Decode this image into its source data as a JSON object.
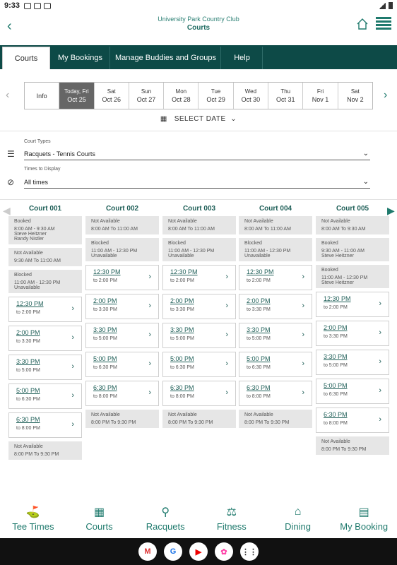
{
  "status": {
    "time": "9:33"
  },
  "header": {
    "club": "University Park Country Club",
    "page": "Courts"
  },
  "tabs": [
    "Courts",
    "My Bookings",
    "Manage Buddies and Groups",
    "Help"
  ],
  "dates": [
    {
      "top": "Info",
      "bottom": ""
    },
    {
      "top": "Today, Fri",
      "bottom": "Oct 25"
    },
    {
      "top": "Sat",
      "bottom": "Oct 26"
    },
    {
      "top": "Sun",
      "bottom": "Oct 27"
    },
    {
      "top": "Mon",
      "bottom": "Oct 28"
    },
    {
      "top": "Tue",
      "bottom": "Oct 29"
    },
    {
      "top": "Wed",
      "bottom": "Oct 30"
    },
    {
      "top": "Thu",
      "bottom": "Oct 31"
    },
    {
      "top": "Fri",
      "bottom": "Nov 1"
    },
    {
      "top": "Sat",
      "bottom": "Nov 2"
    }
  ],
  "select_date": "SELECT DATE",
  "filters": {
    "court_types_label": "Court Types",
    "court_types_value": "Racquets - Tennis Courts",
    "times_label": "Times to Display",
    "times_value": "All times"
  },
  "courts": [
    {
      "name": "Court 001",
      "slots": [
        {
          "type": "gray",
          "title": "Booked",
          "lines": [
            "8:00 AM - 9:30 AM",
            "Steve Heitzner",
            "Randy Nistler"
          ]
        },
        {
          "type": "gray",
          "title": "Not Available",
          "lines": [
            "9:30 AM To 11:00 AM"
          ]
        },
        {
          "type": "gray",
          "title": "Blocked",
          "lines": [
            "11:00 AM - 12:30 PM",
            "Unavailable"
          ]
        },
        {
          "type": "avail",
          "start": "12:30 PM",
          "end": "to 2:00 PM"
        },
        {
          "type": "avail",
          "start": "2:00 PM",
          "end": "to 3:30 PM"
        },
        {
          "type": "avail",
          "start": "3:30 PM",
          "end": "to 5:00 PM"
        },
        {
          "type": "avail",
          "start": "5:00 PM",
          "end": "to 6:30 PM"
        },
        {
          "type": "avail",
          "start": "6:30 PM",
          "end": "to 8:00 PM"
        },
        {
          "type": "gray",
          "title": "Not Available",
          "lines": [
            "8:00 PM To 9:30 PM"
          ]
        }
      ]
    },
    {
      "name": "Court 002",
      "slots": [
        {
          "type": "gray",
          "title": "Not Available",
          "lines": [
            "8:00 AM To 11:00 AM"
          ]
        },
        {
          "type": "gray",
          "title": "Blocked",
          "lines": [
            "11:00 AM - 12:30 PM",
            "Unavailable"
          ]
        },
        {
          "type": "avail",
          "start": "12:30 PM",
          "end": "to 2:00 PM"
        },
        {
          "type": "avail",
          "start": "2:00 PM",
          "end": "to 3:30 PM"
        },
        {
          "type": "avail",
          "start": "3:30 PM",
          "end": "to 5:00 PM"
        },
        {
          "type": "avail",
          "start": "5:00 PM",
          "end": "to 6:30 PM"
        },
        {
          "type": "avail",
          "start": "6:30 PM",
          "end": "to 8:00 PM"
        },
        {
          "type": "gray",
          "title": "Not Available",
          "lines": [
            "8:00 PM To 9:30 PM"
          ]
        }
      ]
    },
    {
      "name": "Court 003",
      "slots": [
        {
          "type": "gray",
          "title": "Not Available",
          "lines": [
            "8:00 AM To 11:00 AM"
          ]
        },
        {
          "type": "gray",
          "title": "Blocked",
          "lines": [
            "11:00 AM - 12:30 PM",
            "Unavailable"
          ]
        },
        {
          "type": "avail",
          "start": "12:30 PM",
          "end": "to 2:00 PM"
        },
        {
          "type": "avail",
          "start": "2:00 PM",
          "end": "to 3:30 PM"
        },
        {
          "type": "avail",
          "start": "3:30 PM",
          "end": "to 5:00 PM"
        },
        {
          "type": "avail",
          "start": "5:00 PM",
          "end": "to 6:30 PM"
        },
        {
          "type": "avail",
          "start": "6:30 PM",
          "end": "to 8:00 PM"
        },
        {
          "type": "gray",
          "title": "Not Available",
          "lines": [
            "8:00 PM To 9:30 PM"
          ]
        }
      ]
    },
    {
      "name": "Court 004",
      "slots": [
        {
          "type": "gray",
          "title": "Not Available",
          "lines": [
            "8:00 AM To 11:00 AM"
          ]
        },
        {
          "type": "gray",
          "title": "Blocked",
          "lines": [
            "11:00 AM - 12:30 PM",
            "Unavailable"
          ]
        },
        {
          "type": "avail",
          "start": "12:30 PM",
          "end": "to 2:00 PM"
        },
        {
          "type": "avail",
          "start": "2:00 PM",
          "end": "to 3:30 PM"
        },
        {
          "type": "avail",
          "start": "3:30 PM",
          "end": "to 5:00 PM"
        },
        {
          "type": "avail",
          "start": "5:00 PM",
          "end": "to 6:30 PM"
        },
        {
          "type": "avail",
          "start": "6:30 PM",
          "end": "to 8:00 PM"
        },
        {
          "type": "gray",
          "title": "Not Available",
          "lines": [
            "8:00 PM To 9:30 PM"
          ]
        }
      ]
    },
    {
      "name": "Court 005",
      "slots": [
        {
          "type": "gray",
          "title": "Not Available",
          "lines": [
            "8:00 AM To 9:30 AM"
          ]
        },
        {
          "type": "gray",
          "title": "Booked",
          "lines": [
            "9:30 AM - 11:00 AM",
            "Steve Heitzner"
          ]
        },
        {
          "type": "gray",
          "title": "Booked",
          "lines": [
            "11:00 AM - 12:30 PM",
            "Steve Heitzner"
          ]
        },
        {
          "type": "avail",
          "start": "12:30 PM",
          "end": "to 2:00 PM"
        },
        {
          "type": "avail",
          "start": "2:00 PM",
          "end": "to 3:30 PM"
        },
        {
          "type": "avail",
          "start": "3:30 PM",
          "end": "to 5:00 PM"
        },
        {
          "type": "avail",
          "start": "5:00 PM",
          "end": "to 6:30 PM"
        },
        {
          "type": "avail",
          "start": "6:30 PM",
          "end": "to 8:00 PM"
        },
        {
          "type": "gray",
          "title": "Not Available",
          "lines": [
            "8:00 PM To 9:30 PM"
          ]
        }
      ]
    }
  ],
  "bottom_nav": [
    "Tee Times",
    "Courts",
    "Racquets",
    "Fitness",
    "Dining",
    "My Booking"
  ],
  "taskbar": [
    "M",
    "G",
    "▶",
    "✿",
    "⋮⋮"
  ]
}
